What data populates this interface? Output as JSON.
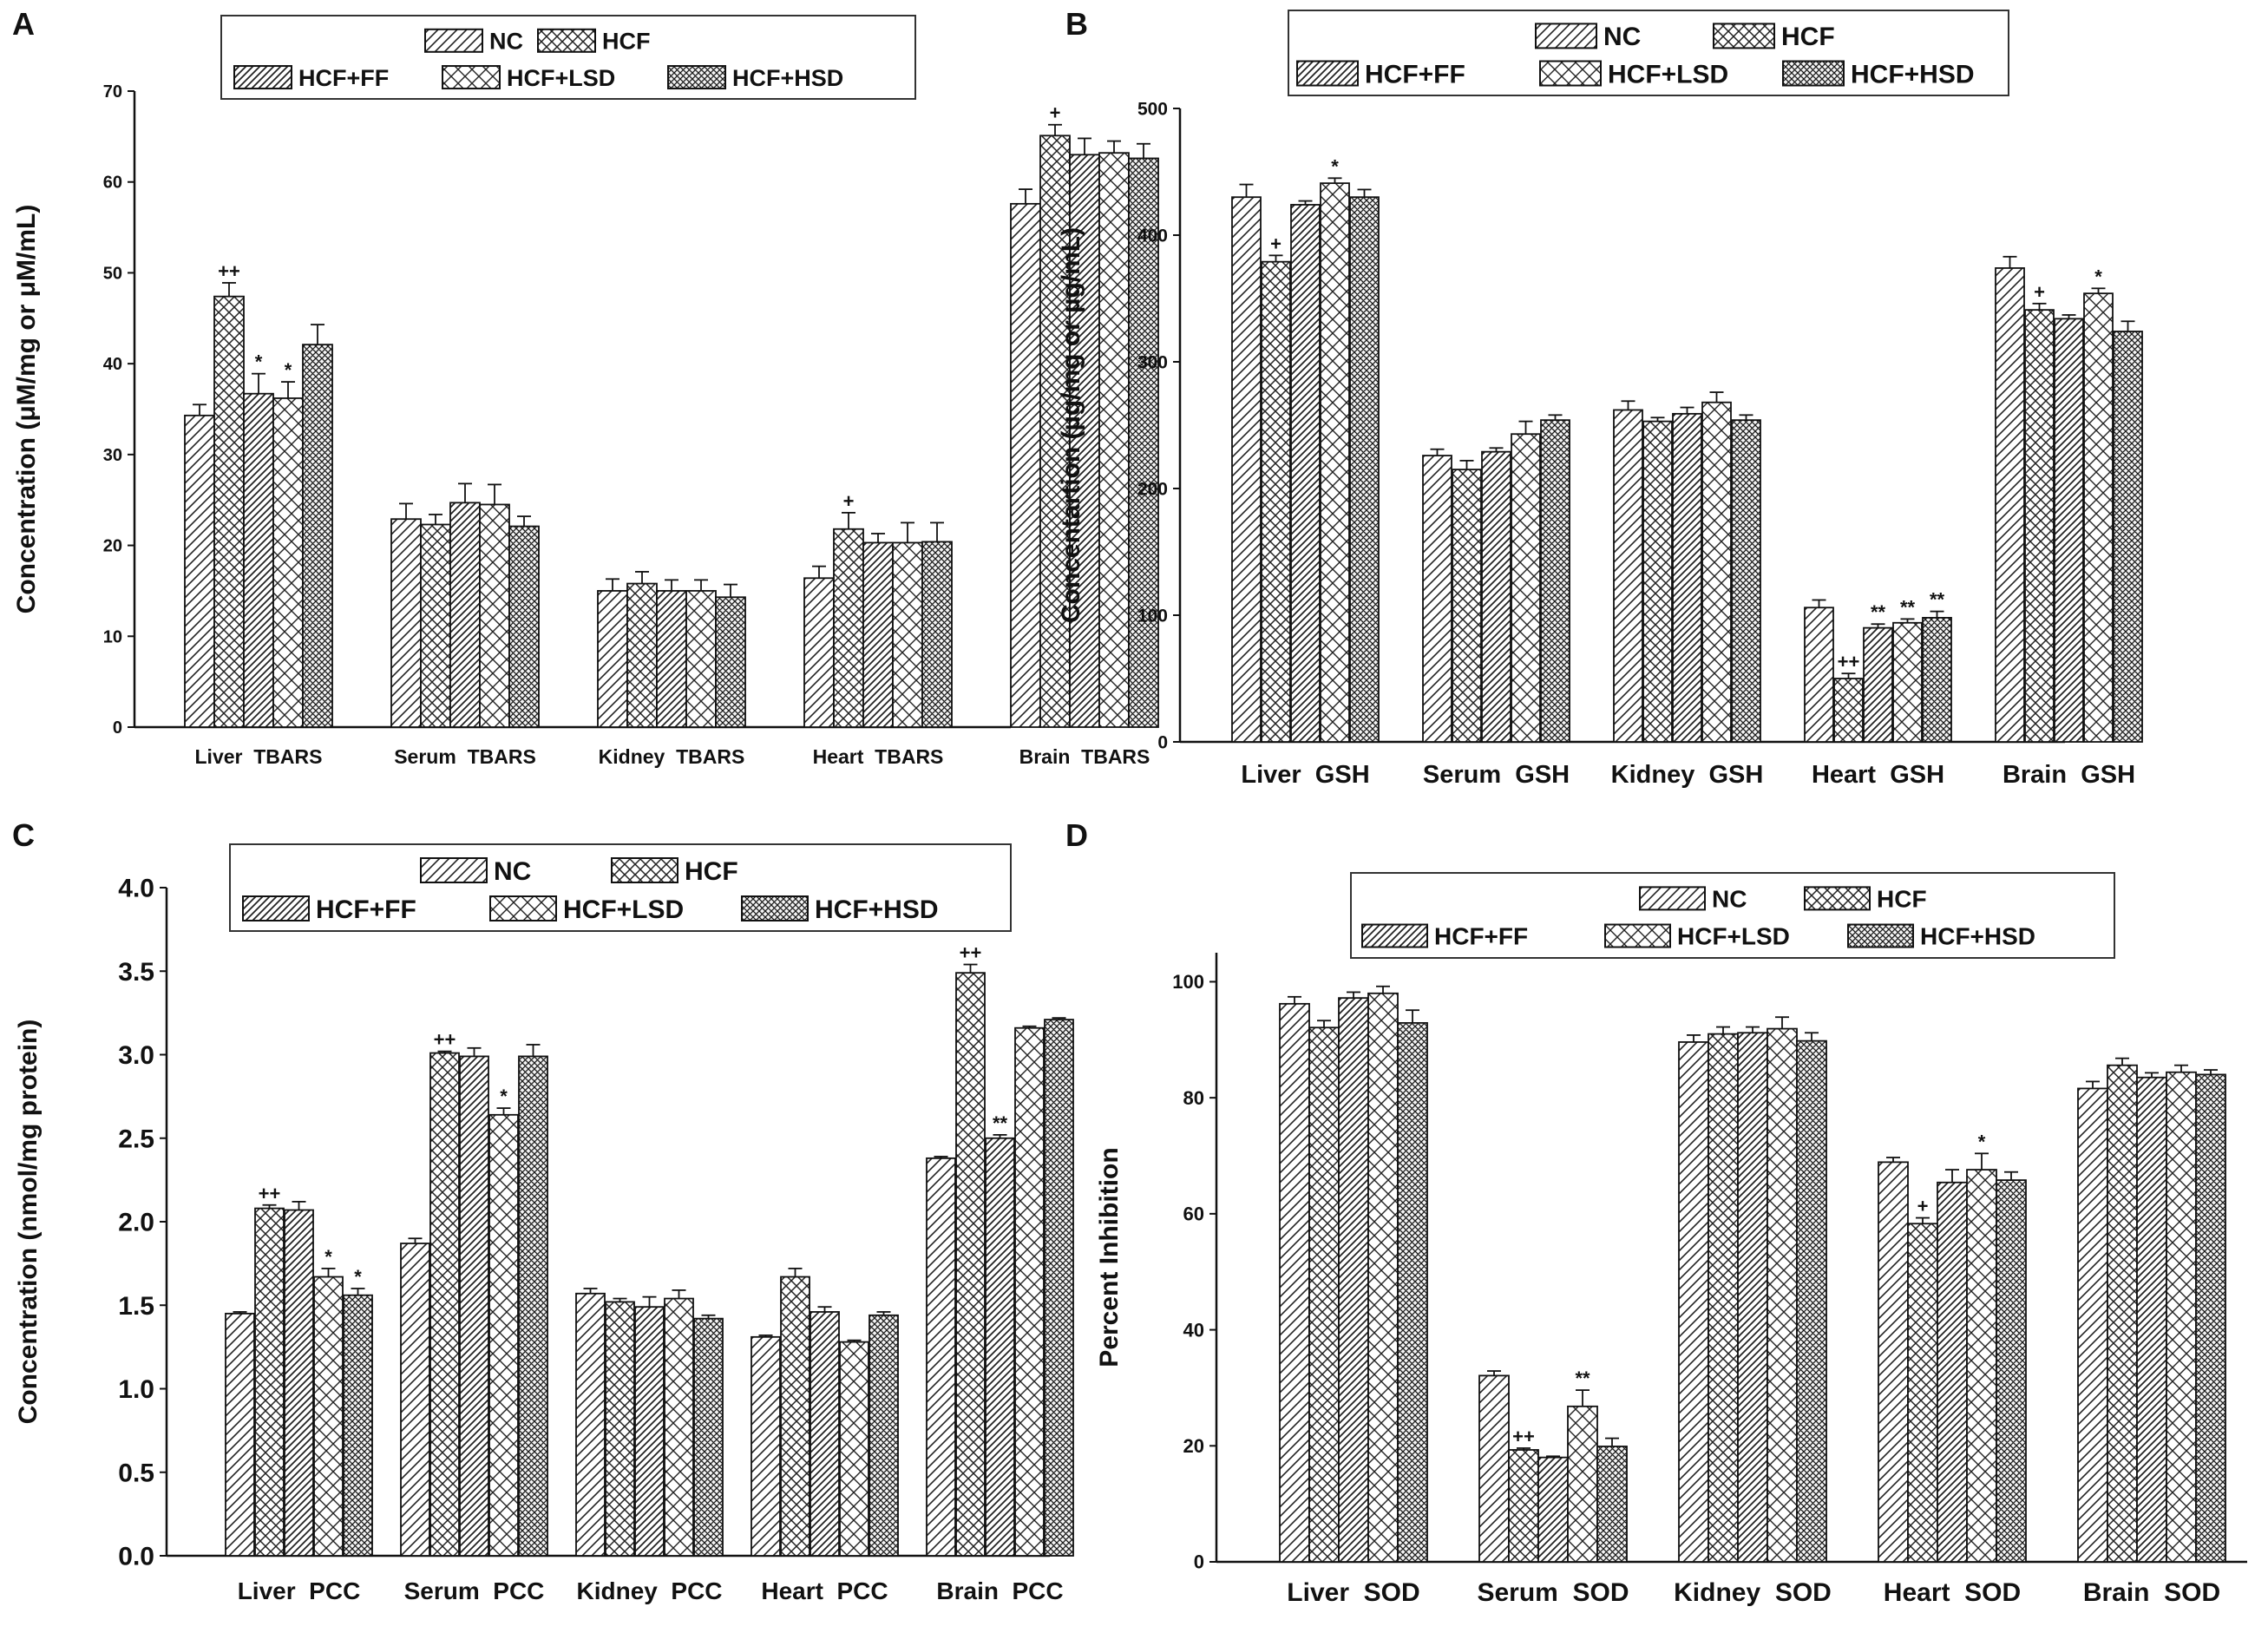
{
  "series_names": [
    "NC",
    "HCF",
    "HCF+FF",
    "HCF+LSD",
    "HCF+HSD"
  ],
  "chart_data": [
    {
      "panel": "A",
      "type": "bar",
      "title": "",
      "xlabel": "",
      "ylabel": "Concentration (μM/mg or μM/mL)",
      "ylim": [
        0,
        70
      ],
      "yticks": [
        0,
        10,
        20,
        30,
        40,
        50,
        60,
        70
      ],
      "ytick_labels": [
        "0",
        "10",
        "20",
        "30",
        "40",
        "50",
        "60",
        "70"
      ],
      "legend_position": "top",
      "categories": [
        "Liver  TBARS",
        "Serum  TBARS",
        "Kidney  TBARS",
        "Heart  TBARS",
        "Brain  TBARS"
      ],
      "series": [
        {
          "name": "NC",
          "values": [
            34.3,
            22.9,
            15.0,
            16.4,
            57.6
          ],
          "errors": [
            1.2,
            1.7,
            1.3,
            1.3,
            1.6
          ]
        },
        {
          "name": "HCF",
          "values": [
            47.4,
            22.3,
            15.8,
            21.8,
            65.1
          ],
          "errors": [
            1.5,
            1.1,
            1.3,
            1.8,
            1.2
          ]
        },
        {
          "name": "HCF+FF",
          "values": [
            36.7,
            24.7,
            15.0,
            20.3,
            63.0
          ],
          "errors": [
            2.2,
            2.1,
            1.2,
            1.0,
            1.8
          ]
        },
        {
          "name": "HCF+LSD",
          "values": [
            36.2,
            24.5,
            15.0,
            20.3,
            63.2
          ],
          "errors": [
            1.8,
            2.2,
            1.2,
            2.2,
            1.3
          ]
        },
        {
          "name": "HCF+HSD",
          "values": [
            42.1,
            22.1,
            14.3,
            20.4,
            62.6
          ],
          "errors": [
            2.2,
            1.1,
            1.4,
            2.1,
            1.6
          ]
        }
      ],
      "annotations": [
        {
          "category": 0,
          "series": 1,
          "text": "++"
        },
        {
          "category": 0,
          "series": 2,
          "text": "*"
        },
        {
          "category": 0,
          "series": 3,
          "text": "*"
        },
        {
          "category": 3,
          "series": 1,
          "text": "+"
        },
        {
          "category": 4,
          "series": 1,
          "text": "+"
        }
      ]
    },
    {
      "panel": "B",
      "type": "bar",
      "title": "",
      "xlabel": "",
      "ylabel": "Concentartion (µg/mg or µg/mL)",
      "ylim": [
        0,
        500
      ],
      "yticks": [
        0,
        100,
        200,
        300,
        400,
        500
      ],
      "ytick_labels": [
        "0",
        "100",
        "200",
        "300",
        "400",
        "500"
      ],
      "legend_position": "top",
      "categories": [
        "Liver  GSH",
        "Serum  GSH",
        "Kidney  GSH",
        "Heart  GSH",
        "Brain  GSH"
      ],
      "series": [
        {
          "name": "NC",
          "values": [
            430,
            226,
            262,
            106,
            374
          ],
          "errors": [
            10,
            5,
            7,
            6,
            9
          ]
        },
        {
          "name": "HCF",
          "values": [
            379,
            215,
            253,
            50,
            341
          ],
          "errors": [
            5,
            7,
            3,
            4,
            5
          ]
        },
        {
          "name": "HCF+FF",
          "values": [
            424,
            229,
            259,
            90,
            334
          ],
          "errors": [
            3,
            3,
            5,
            3,
            3
          ]
        },
        {
          "name": "HCF+LSD",
          "values": [
            441,
            243,
            268,
            94,
            354
          ],
          "errors": [
            4,
            10,
            8,
            3,
            4
          ]
        },
        {
          "name": "HCF+HSD",
          "values": [
            430,
            254,
            254,
            98,
            324
          ],
          "errors": [
            6,
            4,
            4,
            5,
            8
          ]
        }
      ],
      "annotations": [
        {
          "category": 0,
          "series": 1,
          "text": "+"
        },
        {
          "category": 0,
          "series": 3,
          "text": "*"
        },
        {
          "category": 3,
          "series": 1,
          "text": "++"
        },
        {
          "category": 3,
          "series": 2,
          "text": "**"
        },
        {
          "category": 3,
          "series": 3,
          "text": "**"
        },
        {
          "category": 3,
          "series": 4,
          "text": "**"
        },
        {
          "category": 4,
          "series": 1,
          "text": "+"
        },
        {
          "category": 4,
          "series": 3,
          "text": "*"
        }
      ]
    },
    {
      "panel": "C",
      "type": "bar",
      "title": "",
      "xlabel": "",
      "ylabel": "Concentration (nmol/mg protein)",
      "ylim": [
        0,
        4.0
      ],
      "yticks": [
        0,
        0.5,
        1.0,
        1.5,
        2.0,
        2.5,
        3.0,
        3.5,
        4.0
      ],
      "ytick_labels": [
        "0.0",
        "0.5",
        "1.0",
        "1.5",
        "2.0",
        "2.5",
        "3.0",
        "3.5",
        "4.0"
      ],
      "legend_position": "top",
      "categories": [
        "Liver  PCC",
        "Serum  PCC",
        "Kidney  PCC",
        "Heart  PCC",
        "Brain  PCC"
      ],
      "series": [
        {
          "name": "NC",
          "values": [
            1.45,
            1.87,
            1.57,
            1.31,
            2.38
          ],
          "errors": [
            0.01,
            0.03,
            0.03,
            0.01,
            0.01
          ]
        },
        {
          "name": "HCF",
          "values": [
            2.08,
            3.01,
            1.52,
            1.67,
            3.49
          ],
          "errors": [
            0.02,
            0.01,
            0.02,
            0.05,
            0.05
          ]
        },
        {
          "name": "HCF+FF",
          "values": [
            2.07,
            2.99,
            1.49,
            1.46,
            2.5
          ],
          "errors": [
            0.05,
            0.05,
            0.06,
            0.03,
            0.02
          ]
        },
        {
          "name": "HCF+LSD",
          "values": [
            1.67,
            2.64,
            1.54,
            1.28,
            3.16
          ],
          "errors": [
            0.05,
            0.04,
            0.05,
            0.01,
            0.01
          ]
        },
        {
          "name": "HCF+HSD",
          "values": [
            1.56,
            2.99,
            1.42,
            1.44,
            3.21
          ],
          "errors": [
            0.04,
            0.07,
            0.02,
            0.02,
            0.01
          ]
        }
      ],
      "annotations": [
        {
          "category": 0,
          "series": 1,
          "text": "++"
        },
        {
          "category": 0,
          "series": 3,
          "text": "*"
        },
        {
          "category": 0,
          "series": 4,
          "text": "*"
        },
        {
          "category": 1,
          "series": 1,
          "text": "++"
        },
        {
          "category": 1,
          "series": 3,
          "text": "*"
        },
        {
          "category": 4,
          "series": 1,
          "text": "++"
        },
        {
          "category": 4,
          "series": 2,
          "text": "**"
        }
      ]
    },
    {
      "panel": "D",
      "type": "bar",
      "title": "",
      "xlabel": "",
      "ylabel": "Percent Inhibition",
      "ylim": [
        0,
        105
      ],
      "yticks": [
        0,
        20,
        40,
        60,
        80,
        100
      ],
      "ytick_labels": [
        "0",
        "20",
        "40",
        "60",
        "80",
        "100"
      ],
      "legend_position": "top",
      "categories": [
        "Liver  SOD",
        "Serum  SOD",
        "Kidney  SOD",
        "Heart  SOD",
        "Brain  SOD"
      ],
      "series": [
        {
          "name": "NC",
          "values": [
            96.2,
            32.1,
            89.6,
            68.9,
            81.6
          ],
          "errors": [
            1.2,
            0.8,
            1.2,
            0.8,
            1.2
          ]
        },
        {
          "name": "HCF",
          "values": [
            92.1,
            19.3,
            91.0,
            58.3,
            85.6
          ],
          "errors": [
            1.2,
            0.3,
            1.2,
            1.0,
            1.2
          ]
        },
        {
          "name": "HCF+FF",
          "values": [
            97.2,
            18.0,
            91.2,
            65.4,
            83.5
          ],
          "errors": [
            1.0,
            0.2,
            1.0,
            2.2,
            0.8
          ]
        },
        {
          "name": "HCF+LSD",
          "values": [
            98.0,
            26.8,
            91.9,
            67.6,
            84.4
          ],
          "errors": [
            1.2,
            2.8,
            2.0,
            2.8,
            1.2
          ]
        },
        {
          "name": "HCF+HSD",
          "values": [
            92.9,
            19.9,
            89.8,
            65.8,
            84.0
          ],
          "errors": [
            2.2,
            1.4,
            1.4,
            1.4,
            0.8
          ]
        }
      ],
      "annotations": [
        {
          "category": 1,
          "series": 1,
          "text": "++"
        },
        {
          "category": 1,
          "series": 3,
          "text": "**"
        },
        {
          "category": 3,
          "series": 1,
          "text": "+"
        },
        {
          "category": 3,
          "series": 3,
          "text": "*"
        }
      ]
    }
  ]
}
